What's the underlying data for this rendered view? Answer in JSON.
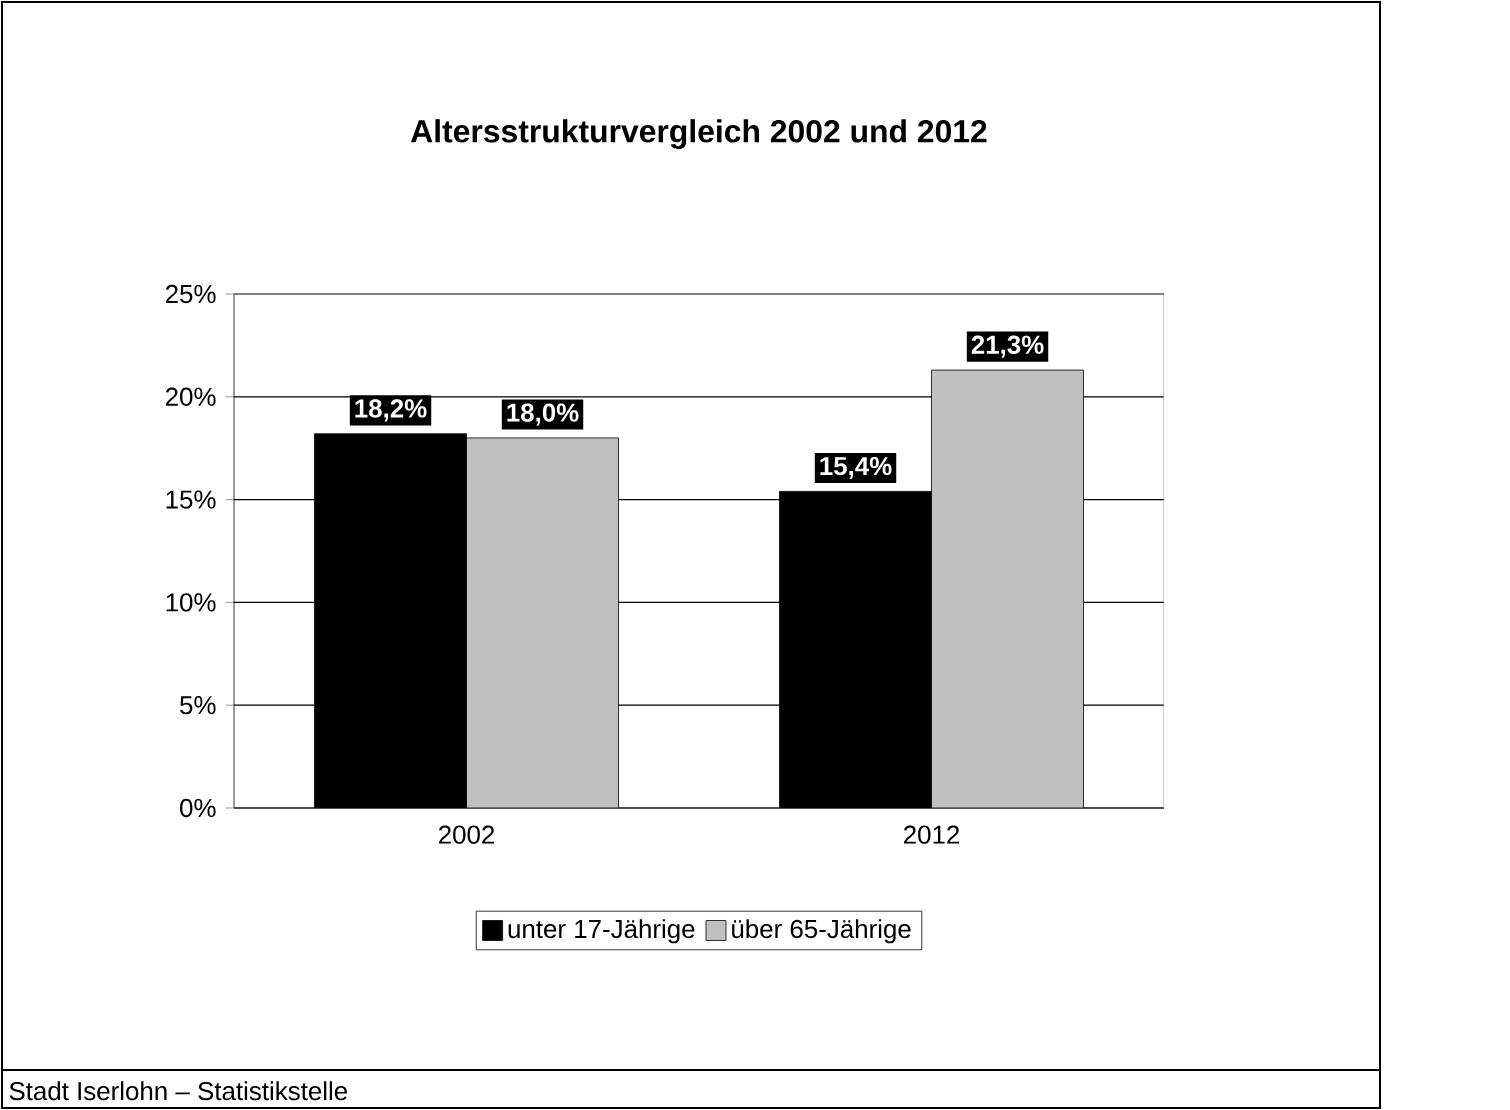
{
  "chart_data": {
    "type": "bar",
    "title": "Altersstrukturvergleich 2002 und 2012",
    "categories": [
      "2002",
      "2012"
    ],
    "series": [
      {
        "name": "unter 17-Jährige",
        "color": "#000000",
        "values": [
          18.2,
          15.4
        ],
        "value_labels": [
          "18,2%",
          "15,4%"
        ]
      },
      {
        "name": "über 65-Jährige",
        "color": "#c0c0c0",
        "values": [
          18.0,
          21.3
        ],
        "value_labels": [
          "18,0%",
          "21,3%"
        ]
      }
    ],
    "ylim": [
      0,
      25
    ],
    "yticks": [
      {
        "value": 0,
        "label": "0%"
      },
      {
        "value": 5,
        "label": "5%"
      },
      {
        "value": 10,
        "label": "10%"
      },
      {
        "value": 15,
        "label": "15%"
      },
      {
        "value": 20,
        "label": "20%"
      },
      {
        "value": 25,
        "label": "25%"
      }
    ],
    "grid": "y",
    "legend": "bottom",
    "annotations": [
      "Stadt Iserlohn – Statistikstelle"
    ]
  }
}
